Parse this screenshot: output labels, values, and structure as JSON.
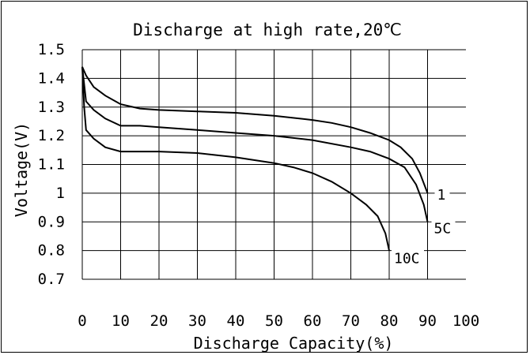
{
  "chart_data": {
    "type": "line",
    "title": "Discharge at high rate,20℃",
    "xlabel": "Discharge Capacity(%)",
    "ylabel": "Voltage(V)",
    "xlim": [
      0,
      100
    ],
    "ylim": [
      0.7,
      1.5
    ],
    "x_ticks": [
      "0",
      "10",
      "20",
      "30",
      "40",
      "50",
      "60",
      "70",
      "80",
      "90",
      "100"
    ],
    "y_ticks": [
      "1.5",
      "1.4",
      "1.3",
      "1.2",
      "1.1",
      "1",
      "0.9",
      "0.8",
      "0.7"
    ],
    "grid": true,
    "series": [
      {
        "name": "1",
        "points": [
          [
            0,
            1.44
          ],
          [
            1,
            1.41
          ],
          [
            3,
            1.37
          ],
          [
            6,
            1.34
          ],
          [
            10,
            1.31
          ],
          [
            15,
            1.295
          ],
          [
            20,
            1.29
          ],
          [
            30,
            1.285
          ],
          [
            40,
            1.28
          ],
          [
            50,
            1.27
          ],
          [
            60,
            1.255
          ],
          [
            65,
            1.245
          ],
          [
            70,
            1.23
          ],
          [
            75,
            1.21
          ],
          [
            80,
            1.185
          ],
          [
            83,
            1.16
          ],
          [
            86,
            1.12
          ],
          [
            88,
            1.07
          ],
          [
            90,
            1.0
          ]
        ]
      },
      {
        "name": "5C",
        "points": [
          [
            0,
            1.44
          ],
          [
            0.5,
            1.38
          ],
          [
            1,
            1.32
          ],
          [
            3,
            1.29
          ],
          [
            6,
            1.26
          ],
          [
            10,
            1.235
          ],
          [
            15,
            1.235
          ],
          [
            20,
            1.23
          ],
          [
            30,
            1.22
          ],
          [
            40,
            1.21
          ],
          [
            50,
            1.2
          ],
          [
            60,
            1.185
          ],
          [
            70,
            1.16
          ],
          [
            75,
            1.145
          ],
          [
            80,
            1.12
          ],
          [
            84,
            1.09
          ],
          [
            87,
            1.03
          ],
          [
            89,
            0.96
          ],
          [
            90,
            0.9
          ]
        ]
      },
      {
        "name": "10C",
        "points": [
          [
            0,
            1.44
          ],
          [
            0.5,
            1.3
          ],
          [
            1,
            1.22
          ],
          [
            3,
            1.19
          ],
          [
            6,
            1.16
          ],
          [
            10,
            1.145
          ],
          [
            20,
            1.145
          ],
          [
            30,
            1.14
          ],
          [
            40,
            1.125
          ],
          [
            50,
            1.105
          ],
          [
            55,
            1.09
          ],
          [
            60,
            1.07
          ],
          [
            65,
            1.04
          ],
          [
            70,
            1.0
          ],
          [
            74,
            0.96
          ],
          [
            77,
            0.92
          ],
          [
            79,
            0.86
          ],
          [
            80,
            0.8
          ]
        ]
      }
    ]
  }
}
